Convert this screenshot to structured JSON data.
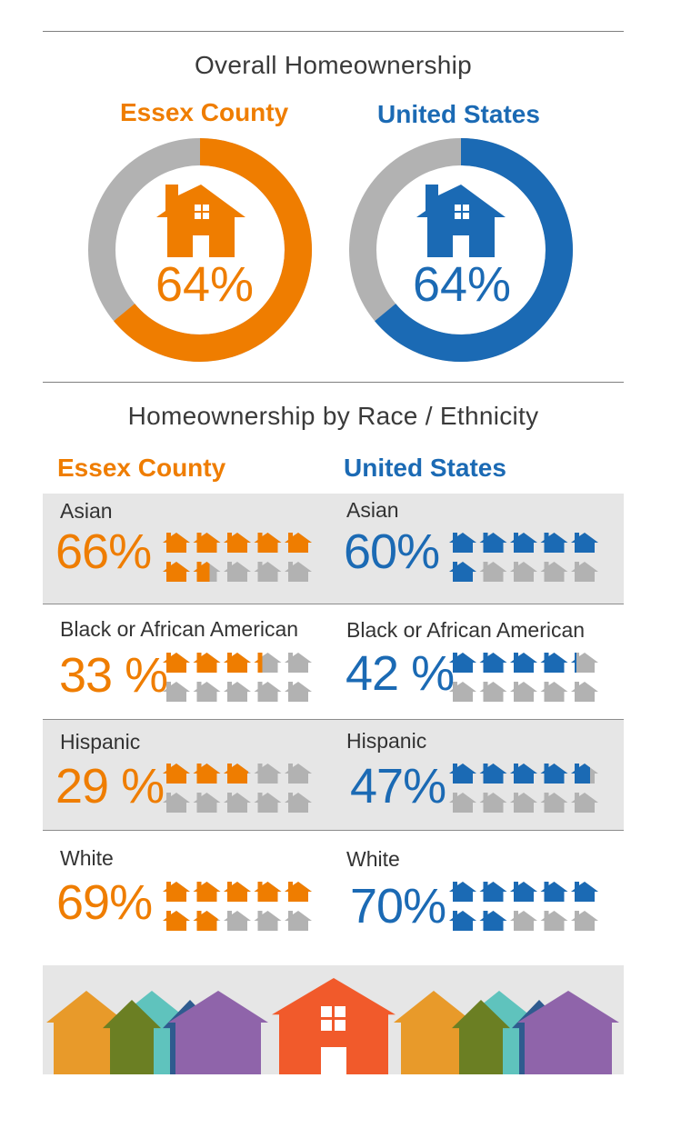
{
  "colors": {
    "essex": "#ef7d00",
    "us": "#1b6ab4",
    "empty": "#b2b2b2",
    "band": "#e6e6e6"
  },
  "overall": {
    "title": "Overall Homeownership",
    "essex": {
      "label": "Essex County",
      "value_text": "64%"
    },
    "us": {
      "label": "United States",
      "value_text": "64%"
    }
  },
  "by_race": {
    "title": "Homeownership by Race / Ethnicity",
    "essex_label": "Essex County",
    "us_label": "United States",
    "rows": [
      {
        "category": "Asian",
        "essex_text": "66%",
        "us_text": "60%"
      },
      {
        "category": "Black or African American",
        "essex_text": "33 %",
        "us_text": "42 %"
      },
      {
        "category": "Hispanic",
        "essex_text": "29 %",
        "us_text": "47%"
      },
      {
        "category": "White",
        "essex_text": "69%",
        "us_text": "70%"
      }
    ]
  },
  "chart_data": [
    {
      "type": "pie",
      "title": "Overall Homeownership",
      "series": [
        {
          "name": "Essex County",
          "values": [
            64
          ]
        },
        {
          "name": "United States",
          "values": [
            64
          ]
        }
      ]
    },
    {
      "type": "bar",
      "title": "Homeownership by Race / Ethnicity",
      "categories": [
        "Asian",
        "Black or African American",
        "Hispanic",
        "White"
      ],
      "series": [
        {
          "name": "Essex County",
          "values": [
            66,
            33,
            29,
            69
          ]
        },
        {
          "name": "United States",
          "values": [
            60,
            42,
            47,
            70
          ]
        }
      ],
      "ylim": [
        0,
        100
      ]
    }
  ],
  "footer": {
    "houses": [
      "#e89a2a",
      "#5fc3bd",
      "#6b7f23",
      "#2f5b8f",
      "#8f64aa",
      "#f15a2b",
      "#e89a2a",
      "#5fc3bd",
      "#6b7f23",
      "#2f5b8f",
      "#8f64aa"
    ]
  }
}
